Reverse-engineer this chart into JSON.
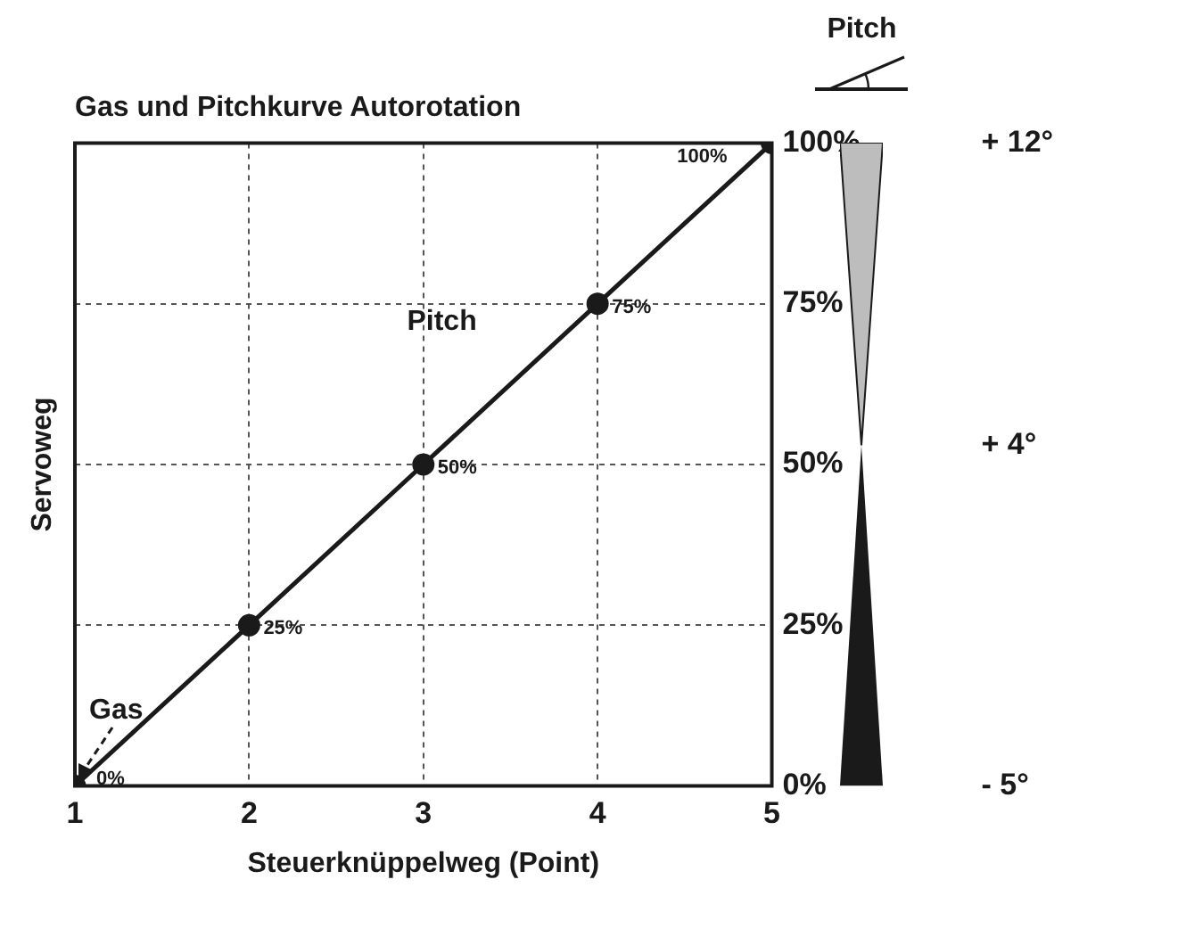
{
  "chart_data": {
    "type": "line",
    "title": "Gas und Pitchkurve Autorotation",
    "xlabel": "Steuerknüppelweg (Point)",
    "ylabel": "Servoweg",
    "x": [
      1,
      2,
      3,
      4,
      5
    ],
    "series": [
      {
        "color": "#1a1a1a",
        "values": [
          0,
          25,
          50,
          75,
          100
        ],
        "value_labels": [
          "0%",
          "25%",
          "50%",
          "75%",
          "100%"
        ]
      }
    ],
    "xlim": [
      1,
      5
    ],
    "xticks": [
      1,
      2,
      3,
      4,
      5
    ],
    "ylim": [
      0,
      100
    ],
    "yticks": [
      {
        "value": 0,
        "label": "0%"
      },
      {
        "value": 25,
        "label": "25%"
      },
      {
        "value": 50,
        "label": "50%"
      },
      {
        "value": 75,
        "label": "75%"
      },
      {
        "value": 100,
        "label": "100%"
      }
    ],
    "y2lim": [
      -5,
      12
    ],
    "y2ticks": [
      {
        "value": -5,
        "label": "- 5°"
      },
      {
        "value": 4,
        "label": "+ 4°"
      },
      {
        "value": 12,
        "label": "+ 12°"
      }
    ],
    "annotations": [
      {
        "text": "Gas",
        "x": 1,
        "y": 0
      },
      "Pitch",
      "Pitch"
    ],
    "grid": true,
    "marker": "circle",
    "line_style": "solid"
  }
}
